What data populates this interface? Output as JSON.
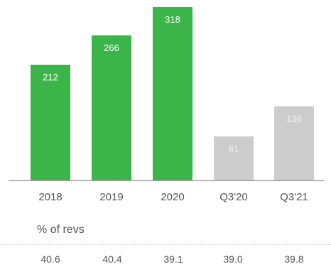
{
  "chart_data": {
    "type": "bar",
    "categories": [
      "2018",
      "2019",
      "2020",
      "Q3'20",
      "Q3'21"
    ],
    "values": [
      212,
      266,
      318,
      81,
      136
    ],
    "bar_colors": [
      "#3bb54a",
      "#3bb54a",
      "#3bb54a",
      "#cccccc",
      "#cccccc"
    ],
    "ylim": [
      0,
      318
    ],
    "title": "",
    "xlabel": "",
    "ylabel": "",
    "grid": false
  },
  "pct_section": {
    "title": "% of revs",
    "values": [
      "40.6",
      "40.4",
      "39.1",
      "39.0",
      "39.8"
    ]
  }
}
